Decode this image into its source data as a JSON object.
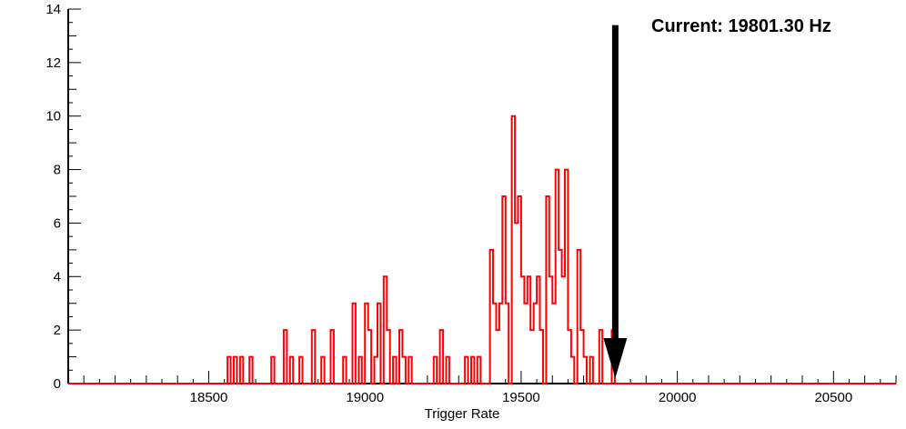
{
  "annotation": {
    "text": "Current: 19801.30 Hz"
  },
  "chart_data": {
    "type": "bar",
    "subtype": "step-histogram",
    "title": "",
    "xlabel": "Trigger Rate",
    "ylabel": "",
    "xlim": [
      18050,
      20700
    ],
    "ylim": [
      0,
      14
    ],
    "x_ticks_major": [
      18500,
      19000,
      19500,
      20000,
      20500
    ],
    "y_ticks_major": [
      0,
      2,
      4,
      6,
      8,
      10,
      12,
      14
    ],
    "grid": false,
    "legend": "none",
    "bin_width": 10,
    "series_color": "#ff0000",
    "axis_color": "#000000",
    "arrow": {
      "x": 19801.3,
      "y_top": 13.4,
      "y_tip": 0.2,
      "color": "#000000",
      "label": "Current: 19801.30 Hz"
    },
    "bins": [
      [
        18560,
        1
      ],
      [
        18580,
        1
      ],
      [
        18600,
        1
      ],
      [
        18630,
        1
      ],
      [
        18700,
        1
      ],
      [
        18740,
        2
      ],
      [
        18760,
        1
      ],
      [
        18790,
        1
      ],
      [
        18830,
        2
      ],
      [
        18860,
        1
      ],
      [
        18890,
        2
      ],
      [
        18930,
        1
      ],
      [
        18960,
        3
      ],
      [
        18980,
        1
      ],
      [
        19000,
        3
      ],
      [
        19010,
        2
      ],
      [
        19030,
        1
      ],
      [
        19040,
        3
      ],
      [
        19060,
        4
      ],
      [
        19070,
        2
      ],
      [
        19090,
        1
      ],
      [
        19110,
        2
      ],
      [
        19120,
        1
      ],
      [
        19140,
        1
      ],
      [
        19220,
        1
      ],
      [
        19240,
        2
      ],
      [
        19260,
        1
      ],
      [
        19320,
        1
      ],
      [
        19340,
        1
      ],
      [
        19360,
        1
      ],
      [
        19400,
        5
      ],
      [
        19410,
        3
      ],
      [
        19420,
        2
      ],
      [
        19430,
        3
      ],
      [
        19440,
        7
      ],
      [
        19450,
        3
      ],
      [
        19470,
        10
      ],
      [
        19480,
        6
      ],
      [
        19490,
        7
      ],
      [
        19500,
        4
      ],
      [
        19510,
        3
      ],
      [
        19520,
        4
      ],
      [
        19530,
        2
      ],
      [
        19540,
        3
      ],
      [
        19550,
        4
      ],
      [
        19560,
        2
      ],
      [
        19580,
        7
      ],
      [
        19590,
        4
      ],
      [
        19600,
        3
      ],
      [
        19610,
        8
      ],
      [
        19620,
        5
      ],
      [
        19630,
        4
      ],
      [
        19640,
        8
      ],
      [
        19650,
        2
      ],
      [
        19660,
        1
      ],
      [
        19680,
        5
      ],
      [
        19690,
        2
      ],
      [
        19700,
        1
      ],
      [
        19720,
        1
      ],
      [
        19750,
        2
      ],
      [
        19790,
        2
      ]
    ]
  }
}
